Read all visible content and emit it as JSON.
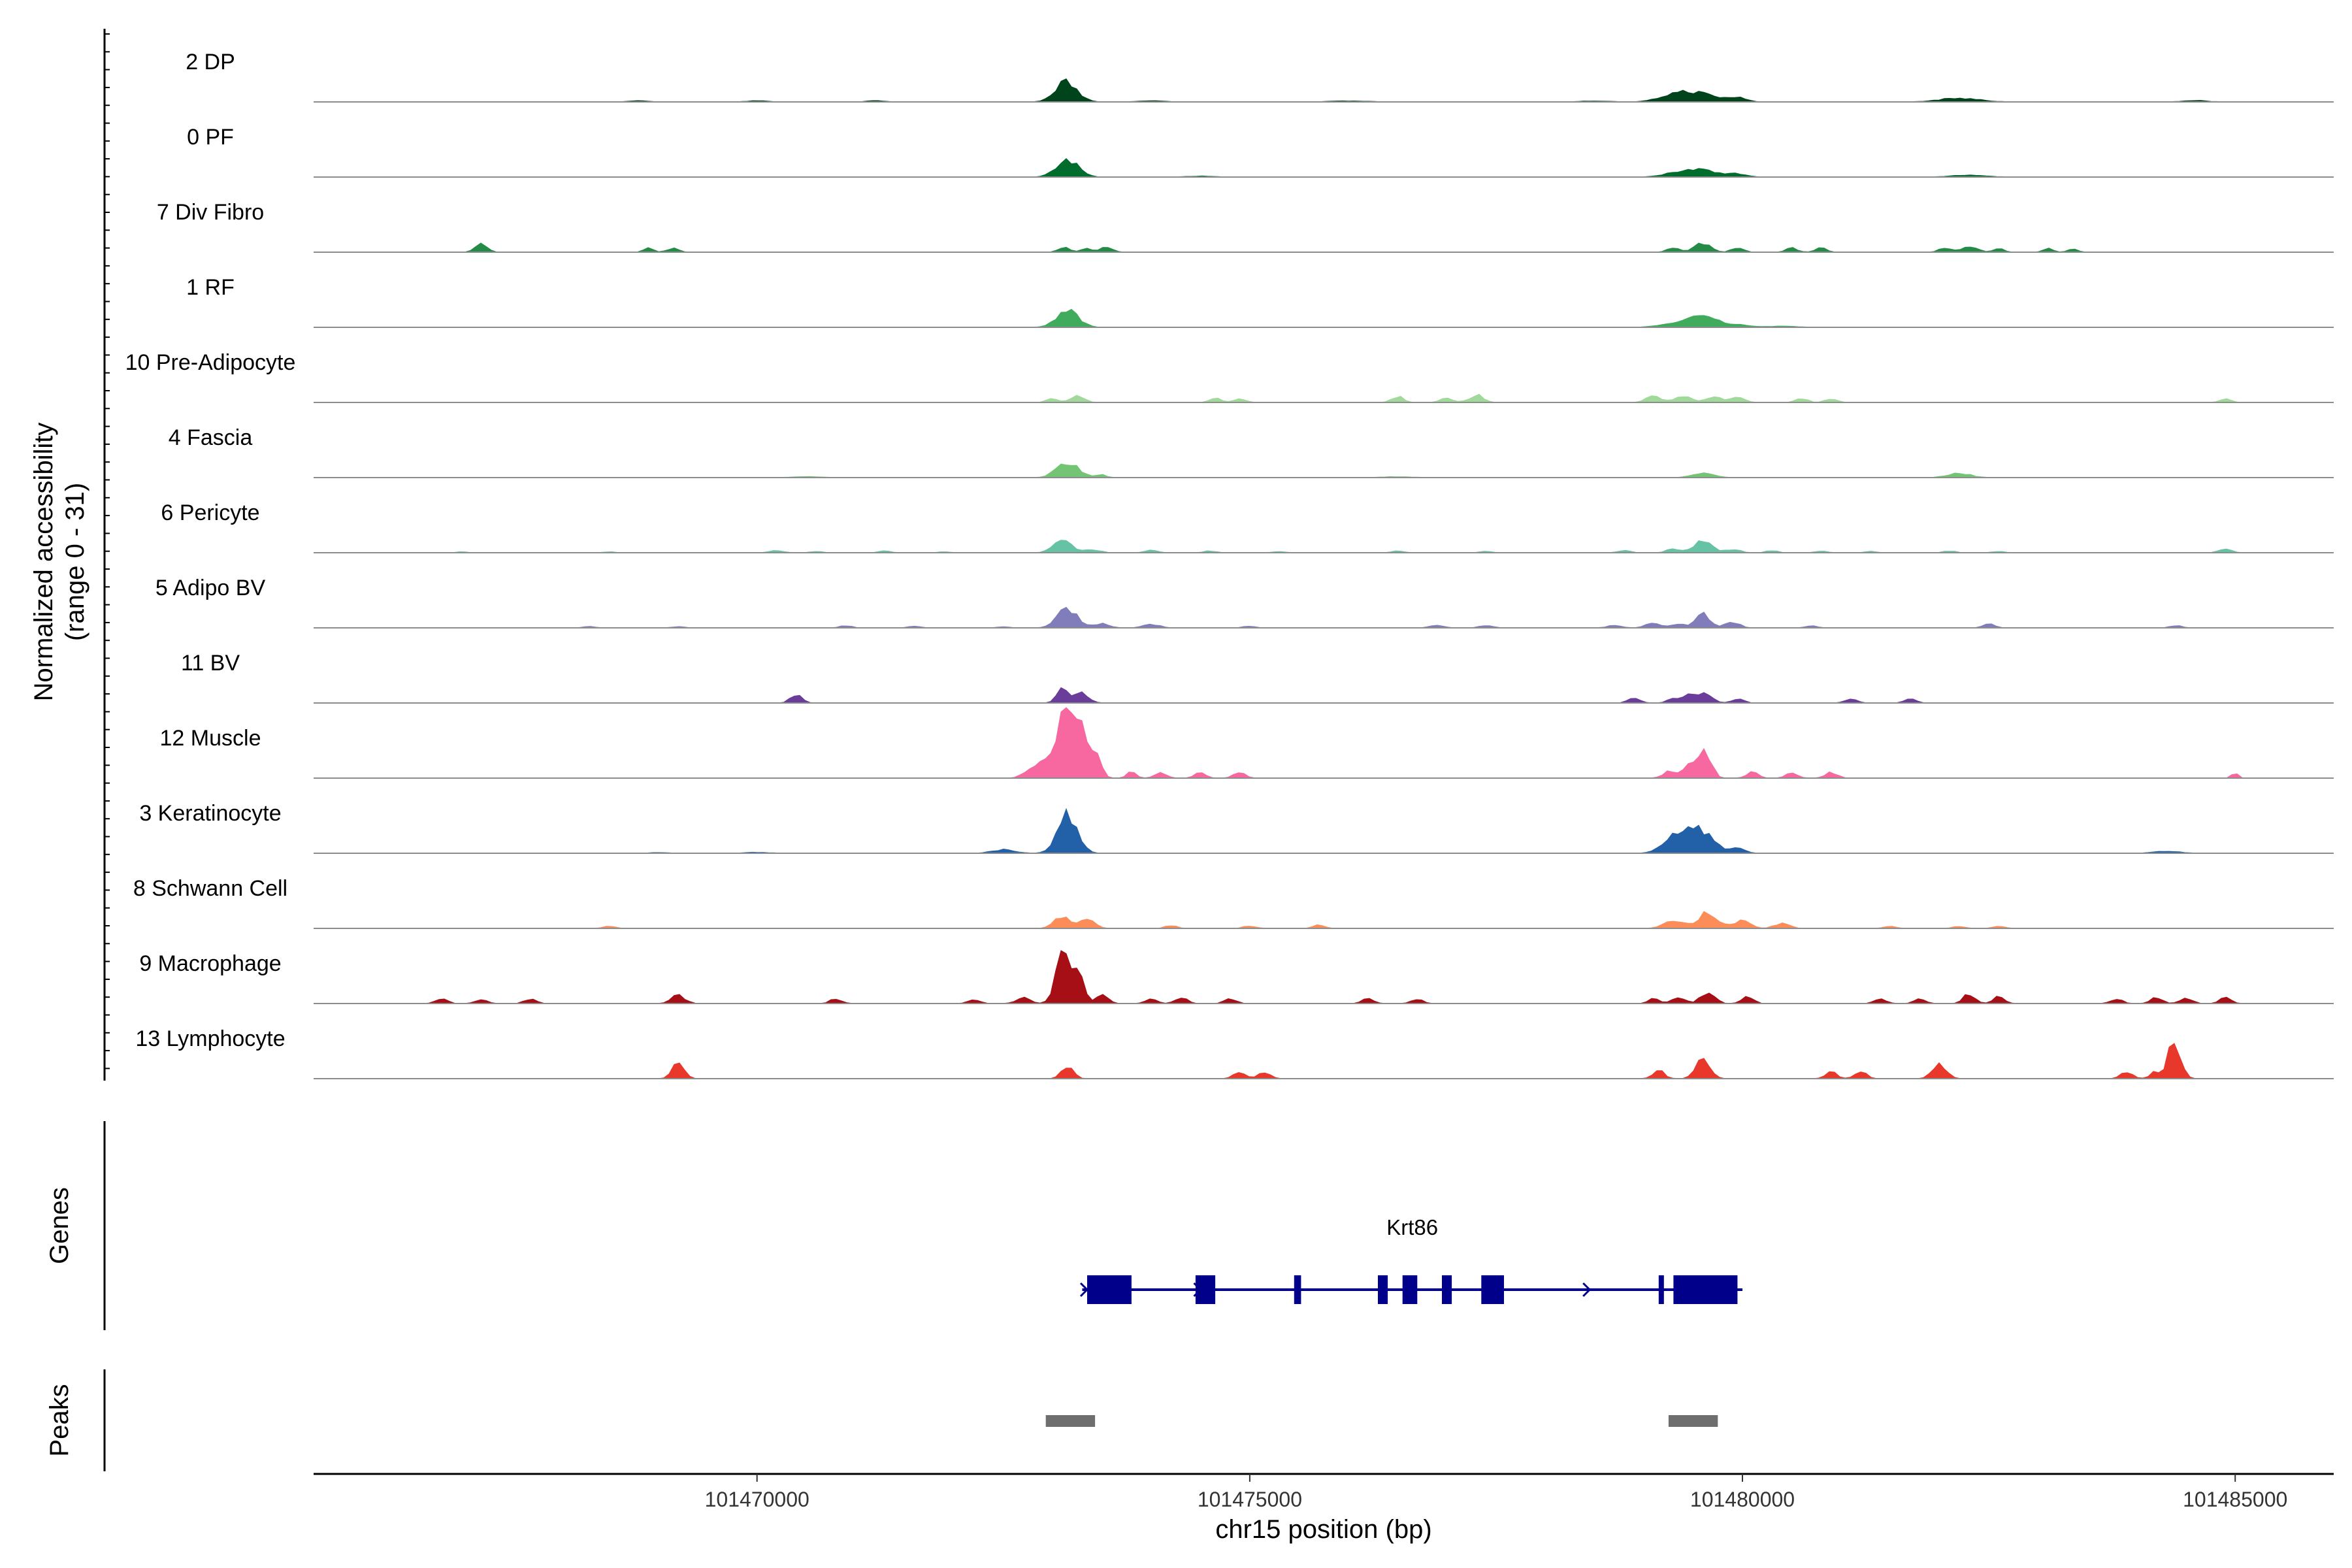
{
  "chart_data": {
    "type": "area",
    "ylabel_line1": "Normalized accessibility",
    "ylabel_line2": "(range 0 - 31)",
    "xlabel": "chr15 position (bp)",
    "xlim": [
      101465500,
      101486000
    ],
    "xticks": [
      101470000,
      101475000,
      101480000,
      101485000
    ],
    "xtick_labels": [
      "101470000",
      "101475000",
      "101480000",
      "101485000"
    ],
    "y_range": [
      0,
      31
    ],
    "grid": false,
    "tracks": [
      {
        "name": "2 DP",
        "color": "#00441b",
        "noise": 0.012,
        "bg": [
          101468300,
          101485000
        ],
        "peaks": [
          [
            101473140,
            110,
            8.5
          ],
          [
            101474000,
            120,
            0.5
          ],
          [
            101476000,
            200,
            0.4
          ],
          [
            101478500,
            150,
            0.4
          ],
          [
            101479300,
            150,
            2.5
          ],
          [
            101479550,
            180,
            3.5
          ],
          [
            101479950,
            90,
            1.8
          ],
          [
            101482200,
            200,
            1.6
          ],
          [
            101484600,
            120,
            0.6
          ],
          [
            101468800,
            100,
            0.5
          ],
          [
            101470000,
            100,
            0.5
          ],
          [
            101471200,
            80,
            0.6
          ]
        ]
      },
      {
        "name": "0 PF",
        "color": "#006d2c",
        "noise": 0.009,
        "bg": [
          101466500,
          101485500
        ],
        "peaks": [
          [
            101473150,
            110,
            7.5
          ],
          [
            101479350,
            150,
            1.6
          ],
          [
            101479600,
            160,
            2.8
          ],
          [
            101479950,
            90,
            1.4
          ],
          [
            101482300,
            180,
            0.8
          ],
          [
            101474500,
            140,
            0.4
          ]
        ]
      },
      {
        "name": "7 Div Fibro",
        "color": "#238b45",
        "noise": 0.0,
        "bg": [
          101466000,
          101485500
        ],
        "peaks": [
          [
            101467200,
            60,
            3.5
          ],
          [
            101468900,
            50,
            1.8
          ],
          [
            101469150,
            60,
            1.8
          ],
          [
            101473120,
            60,
            2.0
          ],
          [
            101473350,
            50,
            1.8
          ],
          [
            101473550,
            60,
            2.2
          ],
          [
            101479300,
            60,
            2.0
          ],
          [
            101479600,
            80,
            4.0
          ],
          [
            101479950,
            60,
            2.0
          ],
          [
            101480500,
            60,
            1.8
          ],
          [
            101480800,
            60,
            1.8
          ],
          [
            101482050,
            60,
            1.8
          ],
          [
            101482300,
            80,
            2.6
          ],
          [
            101482600,
            50,
            1.6
          ],
          [
            101483100,
            50,
            1.6
          ],
          [
            101483350,
            50,
            1.6
          ]
        ]
      },
      {
        "name": "1 RF",
        "color": "#41ab5d",
        "noise": 0.008,
        "bg": [
          101466000,
          101485500
        ],
        "peaks": [
          [
            101473150,
            110,
            7.0
          ],
          [
            101479350,
            170,
            1.6
          ],
          [
            101479600,
            160,
            3.8
          ],
          [
            101479950,
            120,
            1.0
          ],
          [
            101480400,
            150,
            0.5
          ]
        ]
      },
      {
        "name": "10 Pre-Adipocyte",
        "color": "#a1d99b",
        "noise": 0.0,
        "bg": [
          101466000,
          101485500
        ],
        "peaks": [
          [
            101473000,
            60,
            1.6
          ],
          [
            101473250,
            70,
            2.8
          ],
          [
            101474650,
            60,
            1.8
          ],
          [
            101474900,
            60,
            1.6
          ],
          [
            101476500,
            60,
            2.6
          ],
          [
            101477000,
            70,
            1.8
          ],
          [
            101477300,
            70,
            3.2
          ],
          [
            101479100,
            80,
            2.8
          ],
          [
            101479400,
            80,
            2.8
          ],
          [
            101479700,
            80,
            2.6
          ],
          [
            101479950,
            70,
            2.2
          ],
          [
            101480600,
            60,
            1.8
          ],
          [
            101480900,
            60,
            1.8
          ],
          [
            101484900,
            60,
            1.6
          ]
        ]
      },
      {
        "name": "4 Fascia",
        "color": "#74c476",
        "noise": 0.009,
        "bg": [
          101466000,
          101485500
        ],
        "peaks": [
          [
            101473150,
            110,
            6.5
          ],
          [
            101473500,
            50,
            1.2
          ],
          [
            101479600,
            110,
            1.8
          ],
          [
            101482200,
            120,
            1.8
          ],
          [
            101476500,
            150,
            0.4
          ],
          [
            101470500,
            150,
            0.4
          ]
        ]
      },
      {
        "name": "6 Pericyte",
        "color": "#66c2a4",
        "noise": 0.0,
        "bg": [
          101466000,
          101485500
        ],
        "peaks": [
          [
            101473100,
            90,
            6.0
          ],
          [
            101473400,
            80,
            1.4
          ],
          [
            101479600,
            90,
            5.0
          ],
          [
            101479300,
            70,
            1.6
          ],
          [
            101479900,
            80,
            1.4
          ],
          [
            101470200,
            70,
            1.0
          ],
          [
            101470600,
            60,
            0.6
          ],
          [
            101471300,
            60,
            0.8
          ],
          [
            101471900,
            60,
            0.5
          ],
          [
            101474000,
            60,
            1.2
          ],
          [
            101474600,
            60,
            0.8
          ],
          [
            101475300,
            60,
            0.6
          ],
          [
            101476500,
            60,
            0.8
          ],
          [
            101477400,
            60,
            0.6
          ],
          [
            101478800,
            60,
            1.0
          ],
          [
            101480300,
            60,
            1.0
          ],
          [
            101480800,
            60,
            0.8
          ],
          [
            101481300,
            60,
            0.6
          ],
          [
            101482100,
            60,
            0.8
          ],
          [
            101482600,
            60,
            0.6
          ],
          [
            101484900,
            60,
            2.0
          ],
          [
            101467000,
            60,
            0.4
          ],
          [
            101468500,
            60,
            0.4
          ]
        ]
      },
      {
        "name": "5 Adipo BV",
        "color": "#807dba",
        "noise": 0.0,
        "bg": [
          101467000,
          101485000
        ],
        "peaks": [
          [
            101473150,
            100,
            8.5
          ],
          [
            101473500,
            80,
            1.8
          ],
          [
            101474000,
            80,
            1.6
          ],
          [
            101475000,
            60,
            0.8
          ],
          [
            101476900,
            70,
            1.3
          ],
          [
            101477400,
            70,
            1.0
          ],
          [
            101478700,
            80,
            1.0
          ],
          [
            101479100,
            80,
            2.0
          ],
          [
            101479350,
            70,
            1.6
          ],
          [
            101479600,
            70,
            6.0
          ],
          [
            101479900,
            70,
            2.6
          ],
          [
            101480700,
            60,
            1.0
          ],
          [
            101482500,
            60,
            1.6
          ],
          [
            101484400,
            60,
            1.0
          ],
          [
            101470900,
            60,
            1.0
          ],
          [
            101471600,
            60,
            0.8
          ],
          [
            101468300,
            60,
            0.6
          ],
          [
            101469200,
            60,
            0.6
          ],
          [
            101472500,
            60,
            0.6
          ]
        ]
      },
      {
        "name": "11 BV",
        "color": "#6a3d9a",
        "noise": 0.0,
        "bg": [
          101466000,
          101485500
        ],
        "peaks": [
          [
            101470400,
            60,
            3.5
          ],
          [
            101473100,
            60,
            6.0
          ],
          [
            101473300,
            70,
            4.5
          ],
          [
            101478900,
            60,
            2.2
          ],
          [
            101479300,
            60,
            2.2
          ],
          [
            101479500,
            80,
            4.0
          ],
          [
            101479650,
            60,
            3.0
          ],
          [
            101479950,
            60,
            2.0
          ],
          [
            101481100,
            60,
            2.0
          ],
          [
            101481700,
            60,
            2.0
          ]
        ]
      },
      {
        "name": "12 Muscle",
        "color": "#f768a1",
        "noise": 0.0,
        "bg": [
          101466000,
          101485500
        ],
        "peaks": [
          [
            101472800,
            80,
            5.0
          ],
          [
            101473000,
            80,
            10.0
          ],
          [
            101473150,
            70,
            28.0
          ],
          [
            101473300,
            60,
            19.0
          ],
          [
            101473450,
            50,
            10.0
          ],
          [
            101473800,
            50,
            2.5
          ],
          [
            101474100,
            60,
            2.5
          ],
          [
            101474500,
            60,
            2.2
          ],
          [
            101474900,
            60,
            2.5
          ],
          [
            101479250,
            60,
            2.8
          ],
          [
            101479450,
            60,
            6.0
          ],
          [
            101479620,
            60,
            12.5
          ],
          [
            101480100,
            60,
            2.5
          ],
          [
            101480500,
            60,
            2.5
          ],
          [
            101480900,
            60,
            2.5
          ],
          [
            101485000,
            30,
            2.5
          ]
        ]
      },
      {
        "name": "3 Keratinocyte",
        "color": "#2260a8",
        "noise": 0.01,
        "bg": [
          101467000,
          101485000
        ],
        "peaks": [
          [
            101473150,
            100,
            17.0
          ],
          [
            101472500,
            120,
            1.5
          ],
          [
            101479350,
            130,
            8.5
          ],
          [
            101479600,
            120,
            8.5
          ],
          [
            101479950,
            80,
            2.0
          ],
          [
            101484300,
            140,
            0.8
          ],
          [
            101470000,
            120,
            0.4
          ],
          [
            101469000,
            100,
            0.3
          ]
        ]
      },
      {
        "name": "8 Schwann Cell",
        "color": "#fc8d59",
        "noise": 0.0,
        "bg": [
          101466000,
          101485500
        ],
        "peaks": [
          [
            101473100,
            80,
            5.5
          ],
          [
            101473350,
            80,
            3.5
          ],
          [
            101468500,
            60,
            1.0
          ],
          [
            101474200,
            60,
            1.2
          ],
          [
            101475000,
            60,
            1.2
          ],
          [
            101475700,
            60,
            1.4
          ],
          [
            101479300,
            100,
            3.0
          ],
          [
            101479650,
            100,
            7.0
          ],
          [
            101480000,
            80,
            3.2
          ],
          [
            101480400,
            80,
            2.0
          ],
          [
            101481500,
            60,
            1.0
          ],
          [
            101482200,
            60,
            1.0
          ],
          [
            101482600,
            60,
            1.0
          ]
        ]
      },
      {
        "name": "9 Macrophage",
        "color": "#a50f15",
        "noise": 0.0,
        "bg": [
          101466000,
          101485500
        ],
        "peaks": [
          [
            101466800,
            60,
            2.0
          ],
          [
            101467200,
            60,
            2.0
          ],
          [
            101467700,
            60,
            2.0
          ],
          [
            101469200,
            70,
            3.5
          ],
          [
            101470800,
            60,
            2.0
          ],
          [
            101472200,
            60,
            1.8
          ],
          [
            101472700,
            70,
            2.6
          ],
          [
            101473100,
            70,
            20.0
          ],
          [
            101473250,
            60,
            14.0
          ],
          [
            101473500,
            60,
            4.0
          ],
          [
            101474000,
            60,
            2.0
          ],
          [
            101474300,
            60,
            2.8
          ],
          [
            101474800,
            60,
            2.0
          ],
          [
            101476200,
            60,
            2.0
          ],
          [
            101476700,
            60,
            2.0
          ],
          [
            101479100,
            60,
            2.0
          ],
          [
            101479350,
            70,
            2.5
          ],
          [
            101479650,
            70,
            5.0
          ],
          [
            101480050,
            60,
            3.0
          ],
          [
            101481400,
            60,
            2.0
          ],
          [
            101481800,
            60,
            2.0
          ],
          [
            101482300,
            60,
            4.0
          ],
          [
            101482600,
            60,
            2.8
          ],
          [
            101483800,
            60,
            2.0
          ],
          [
            101484200,
            60,
            2.6
          ],
          [
            101484500,
            60,
            2.6
          ],
          [
            101484900,
            60,
            2.5
          ]
        ]
      },
      {
        "name": "13 Lymphocyte",
        "color": "#e8372b",
        "noise": 0.0,
        "bg": [
          101466000,
          101485500
        ],
        "peaks": [
          [
            101469200,
            60,
            7.0
          ],
          [
            101473150,
            60,
            5.0
          ],
          [
            101474900,
            60,
            3.0
          ],
          [
            101475150,
            60,
            3.0
          ],
          [
            101479150,
            60,
            3.5
          ],
          [
            101479600,
            70,
            9.0
          ],
          [
            101480900,
            60,
            3.0
          ],
          [
            101481200,
            60,
            3.0
          ],
          [
            101482000,
            70,
            6.5
          ],
          [
            101483900,
            60,
            3.0
          ],
          [
            101484200,
            60,
            3.0
          ],
          [
            101484400,
            60,
            11.0
          ],
          [
            101484350,
            40,
            7.0
          ]
        ]
      }
    ],
    "genes": {
      "label": "Genes",
      "name": "Krt86",
      "color": "#00008b",
      "strand": "+",
      "tx_start": 101473300,
      "tx_end": 101480000,
      "exons": [
        [
          101473350,
          101473800
        ],
        [
          101474450,
          101474650
        ],
        [
          101475450,
          101475520
        ],
        [
          101476300,
          101476400
        ],
        [
          101476550,
          101476700
        ],
        [
          101476950,
          101477050
        ],
        [
          101477350,
          101477580
        ],
        [
          101479150,
          101479180
        ],
        [
          101479300,
          101479950
        ]
      ],
      "arrows": [
        101473350,
        101474500,
        101476400,
        101478450
      ]
    },
    "peaks_track": {
      "label": "Peaks",
      "color": "#6e6e6e",
      "regions": [
        [
          101472930,
          101473430
        ],
        [
          101479250,
          101479750
        ]
      ]
    }
  }
}
